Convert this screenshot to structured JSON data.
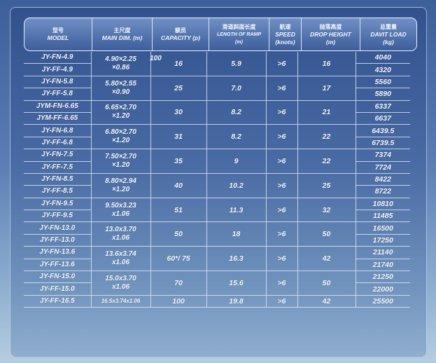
{
  "header": {
    "model": {
      "cn": "型号",
      "en": "MODEL"
    },
    "dim": {
      "cn": "主尺度",
      "en": "MAIN DIM. (m)"
    },
    "capacity": {
      "cn": "额员",
      "en": "CAPACITY (p)"
    },
    "ramp": {
      "cn": "滑道斜面长度",
      "en": "LENGTH OF RAMP",
      "unit": "(m)"
    },
    "speed": {
      "cn": "航速",
      "en": "SPEED",
      "unit": "(knots)"
    },
    "drop": {
      "cn": "抛落高度",
      "en": "DROP HEIGHT",
      "unit": "(m)"
    },
    "load": {
      "cn": "总重量",
      "en": "DAVIT LOAD",
      "unit": "(kg)"
    }
  },
  "capacity_note": "100",
  "groups": [
    {
      "models": [
        "JY-FN-4.9",
        "JY-FF-4.9"
      ],
      "dim": [
        "4.90×2.25",
        "×0.86"
      ],
      "capacity": "16",
      "ramp": "5.9",
      "speed": ">6",
      "drop": "16",
      "loads": [
        "4040",
        "4320"
      ]
    },
    {
      "models": [
        "JY-FN-5.8",
        "JY-FF-5.8"
      ],
      "dim": [
        "5.80×2.55",
        "×0.90"
      ],
      "capacity": "25",
      "ramp": "7.0",
      "speed": ">6",
      "drop": "17",
      "loads": [
        "5560",
        "5890"
      ]
    },
    {
      "models": [
        "JYM-FN-6.65",
        "JYM-FF-6.65"
      ],
      "dim": [
        "6.65×2.70",
        "×1.20"
      ],
      "capacity": "30",
      "ramp": "8.2",
      "speed": ">6",
      "drop": "21",
      "loads": [
        "6337",
        "6637"
      ]
    },
    {
      "models": [
        "JY-FN-6.8",
        "JY-FF-6.8"
      ],
      "dim": [
        "6.80×2.70",
        "×1.20"
      ],
      "capacity": "31",
      "ramp": "8.2",
      "speed": ">6",
      "drop": "22",
      "loads": [
        "6439.5",
        "6739.5"
      ]
    },
    {
      "models": [
        "JY-FN-7.5",
        "JY-FF-7.5"
      ],
      "dim": [
        "7.50×2.70",
        "×1.20"
      ],
      "capacity": "35",
      "ramp": "9",
      "speed": ">6",
      "drop": "22",
      "loads": [
        "7374",
        "7724"
      ]
    },
    {
      "models": [
        "JY-FN-8.5",
        "JY-FF-8.5"
      ],
      "dim": [
        "8.80×2.94",
        "×1.20"
      ],
      "capacity": "40",
      "ramp": "10.2",
      "speed": ">6",
      "drop": "25",
      "loads": [
        "8422",
        "8722"
      ]
    },
    {
      "models": [
        "JY-FN-9.5",
        "JY-FF-9.5"
      ],
      "dim": [
        "9.50x3.23",
        "x1.06"
      ],
      "capacity": "51",
      "ramp": "11.3",
      "speed": ">6",
      "drop": "32",
      "loads": [
        "10810",
        "11485"
      ]
    },
    {
      "models": [
        "JY-FN-13.0",
        "JY-FF-13.0"
      ],
      "dim": [
        "13.0x3.70",
        "x1.06"
      ],
      "capacity": "50",
      "ramp": "18",
      "speed": ">6",
      "drop": "50",
      "loads": [
        "16500",
        "17250"
      ]
    },
    {
      "models": [
        "JY-FN-13.6",
        "JY-FF-13.6"
      ],
      "dim": [
        "13.6x3.74",
        "x1.06"
      ],
      "capacity": "60*/ 75",
      "ramp": "16.3",
      "speed": ">6",
      "drop": "42",
      "loads": [
        "21140",
        "21740"
      ]
    },
    {
      "models": [
        "JY-FN-15.0",
        "JY-FF-15.0"
      ],
      "dim": [
        "15.0x3.70",
        "x1.06"
      ],
      "capacity": "70",
      "ramp": "15.6",
      "speed": ">6",
      "drop": "50",
      "loads": [
        "21250",
        "22000"
      ]
    },
    {
      "models": [
        "JY-FF-16.5"
      ],
      "dim": [
        "16.5x3.74x1.06"
      ],
      "capacity": "100",
      "ramp": "19.8",
      "speed": ">6",
      "drop": "42",
      "loads": [
        "25500"
      ]
    }
  ]
}
